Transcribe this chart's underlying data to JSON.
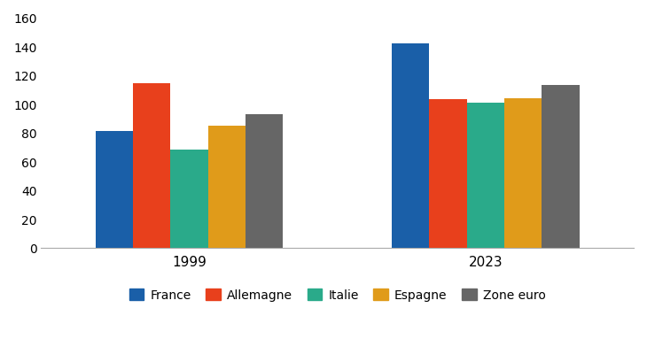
{
  "groups": [
    "1999",
    "2023"
  ],
  "series": [
    {
      "label": "France",
      "color": "#1a5fa8",
      "values": [
        81,
        142
      ]
    },
    {
      "label": "Allemagne",
      "color": "#e8401c",
      "values": [
        114,
        103
      ]
    },
    {
      "label": "Italie",
      "color": "#2aaa8a",
      "values": [
        68,
        101
      ]
    },
    {
      "label": "Espagne",
      "color": "#e09b1a",
      "values": [
        85,
        104
      ]
    },
    {
      "label": "Zone euro",
      "color": "#666666",
      "values": [
        93,
        113
      ]
    }
  ],
  "ylim": [
    0,
    160
  ],
  "yticks": [
    0,
    20,
    40,
    60,
    80,
    100,
    120,
    140,
    160
  ],
  "group_centers": [
    1.5,
    4.5
  ],
  "bar_width": 0.38,
  "xlim": [
    0,
    6
  ]
}
